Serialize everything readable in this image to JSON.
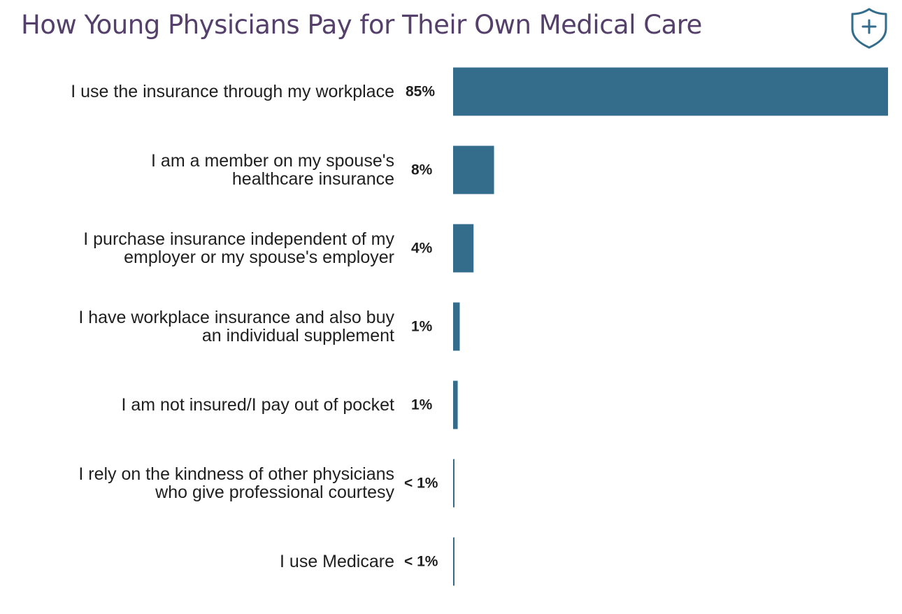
{
  "colors": {
    "title": "#55406b",
    "bar": "#346d8c",
    "text": "#1f1f1f",
    "logo_stroke": "#346d8c"
  },
  "logo": {
    "icon": "shield-plus-icon"
  },
  "chart_data": {
    "type": "bar",
    "orientation": "horizontal",
    "title": "How Young Physicians Pay for Their Own Medical Care",
    "xlabel": "",
    "ylabel": "",
    "unit": "%",
    "grid": false,
    "legend": "none",
    "xlim": [
      0,
      85
    ],
    "categories": [
      [
        "I use the insurance through my workplace"
      ],
      [
        "I am a member on my spouse's",
        "healthcare insurance"
      ],
      [
        "I purchase insurance independent of my",
        "employer or my spouse's employer"
      ],
      [
        "I have workplace insurance and also buy",
        "an individual supplement"
      ],
      [
        "I am not insured/I pay out of pocket"
      ],
      [
        "I rely on the kindness of other physicians",
        "who give professional courtesy"
      ],
      [
        "I use Medicare"
      ]
    ],
    "values": [
      85,
      8,
      4,
      1.3,
      0.9,
      0.2,
      0.2
    ],
    "value_labels": [
      "85%",
      "8%",
      "4%",
      "1%",
      "1%",
      "< 1%",
      "< 1%"
    ]
  }
}
